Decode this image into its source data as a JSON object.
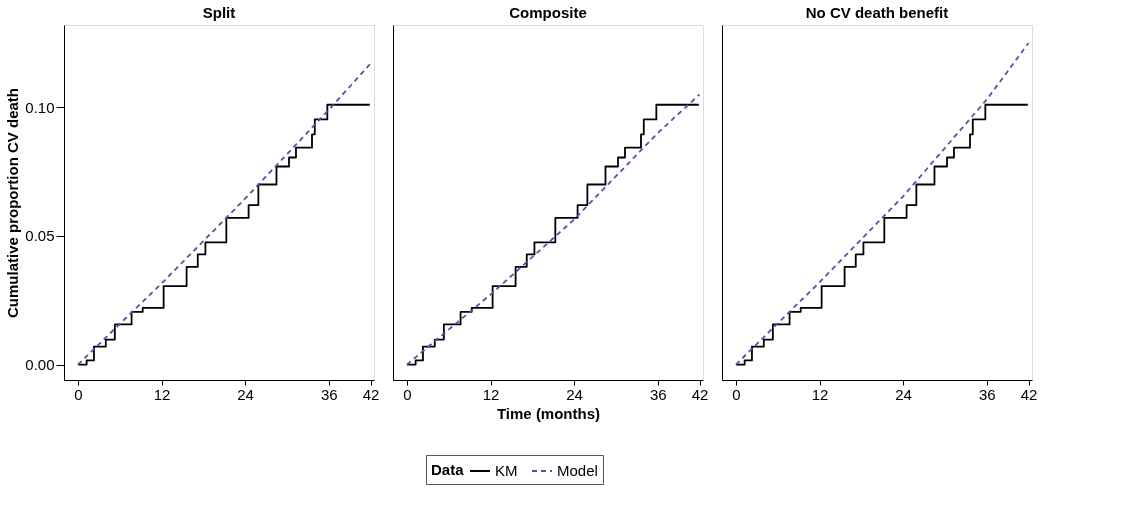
{
  "chart_data": [
    {
      "type": "line",
      "title": "Split",
      "ylabel": "Cumulative proportion CV death",
      "legend_title": "Data",
      "legend": "bottom",
      "xlim": [
        -2,
        42.5
      ],
      "xticks": [
        0,
        12,
        24,
        36,
        42
      ],
      "ylim": [
        -0.006,
        0.132
      ],
      "yticks": [
        {
          "value": 0,
          "label": "0.00"
        },
        {
          "value": 0.05,
          "label": "0.05"
        },
        {
          "value": 0.1,
          "label": "0.10"
        }
      ],
      "grid": false,
      "series": [
        {
          "name": "KM",
          "type": "step",
          "color": "#000000",
          "line_style": "solid",
          "x": [
            0,
            1.25,
            2.3,
            4.0,
            5.3,
            7.7,
            9.3,
            12.3,
            13.5,
            15.6,
            17.2,
            18.3,
            21.3,
            24.5,
            25.9,
            28.5,
            30.3,
            31.3,
            33.6,
            34.0,
            35.4,
            35.8,
            41.9
          ],
          "values": [
            0,
            0.0016,
            0.007,
            0.0097,
            0.0156,
            0.0205,
            0.022,
            0.0305,
            0.0305,
            0.038,
            0.0428,
            0.0475,
            0.057,
            0.062,
            0.07,
            0.077,
            0.0805,
            0.0843,
            0.0895,
            0.0953,
            0.0953,
            0.101,
            0.101
          ]
        },
        {
          "name": "Model",
          "type": "line",
          "color": "#5b4ea8",
          "line_style": "dashed",
          "x": [
            0,
            12,
            24,
            36,
            42
          ],
          "values": [
            0,
            0.0315,
            0.0645,
            0.099,
            0.117
          ]
        }
      ]
    },
    {
      "type": "line",
      "title": "Composite",
      "xlabel": "Time (months)",
      "tick_labels": "x",
      "xlim": [
        -2,
        42.5
      ],
      "xticks": [
        0,
        12,
        24,
        36,
        42
      ],
      "ylim": [
        -0.006,
        0.132
      ],
      "grid": false,
      "series": [
        {
          "name": "KM",
          "type": "step",
          "color": "#000000",
          "line_style": "solid",
          "x": [
            0,
            1.25,
            2.3,
            4.0,
            5.3,
            7.7,
            9.3,
            12.3,
            13.5,
            15.6,
            17.2,
            18.3,
            21.3,
            24.5,
            25.9,
            28.5,
            30.3,
            31.3,
            33.6,
            34.0,
            35.4,
            35.8,
            41.9
          ],
          "values": [
            0,
            0.0016,
            0.007,
            0.0097,
            0.0156,
            0.0205,
            0.022,
            0.0305,
            0.0305,
            0.038,
            0.0428,
            0.0475,
            0.057,
            0.062,
            0.07,
            0.077,
            0.0805,
            0.0843,
            0.0895,
            0.0953,
            0.0953,
            0.101,
            0.101
          ]
        },
        {
          "name": "Model",
          "type": "line",
          "color": "#5b4ea8",
          "line_style": "dashed",
          "x": [
            0,
            12,
            24,
            36,
            42
          ],
          "values": [
            0,
            0.0272,
            0.0564,
            0.09,
            0.105
          ]
        }
      ]
    },
    {
      "type": "line",
      "title": "No CV death benefit",
      "tick_labels": "x",
      "xlim": [
        -2,
        42.5
      ],
      "xticks": [
        0,
        12,
        24,
        36,
        42
      ],
      "ylim": [
        -0.006,
        0.132
      ],
      "grid": false,
      "series": [
        {
          "name": "KM",
          "type": "step",
          "color": "#000000",
          "line_style": "solid",
          "x": [
            0,
            1.25,
            2.3,
            4.0,
            5.3,
            7.7,
            9.3,
            12.3,
            13.5,
            15.6,
            17.2,
            18.3,
            21.3,
            24.5,
            25.9,
            28.5,
            30.3,
            31.3,
            33.6,
            34.0,
            35.4,
            35.8,
            41.9
          ],
          "values": [
            0,
            0.0016,
            0.007,
            0.0097,
            0.0156,
            0.0205,
            0.022,
            0.0305,
            0.0305,
            0.038,
            0.0428,
            0.0475,
            0.057,
            0.062,
            0.07,
            0.077,
            0.0805,
            0.0843,
            0.0895,
            0.0953,
            0.0953,
            0.101,
            0.101
          ]
        },
        {
          "name": "Model",
          "type": "line",
          "color": "#5b4ea8",
          "line_style": "dashed",
          "x": [
            0,
            12,
            24,
            36,
            42
          ],
          "values": [
            0,
            0.032,
            0.0654,
            0.103,
            0.125
          ]
        }
      ]
    }
  ]
}
